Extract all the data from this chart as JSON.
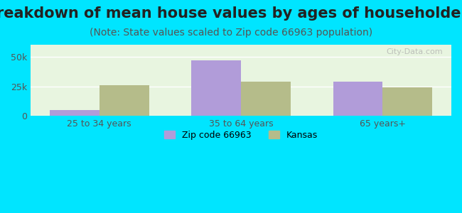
{
  "title": "Breakdown of mean house values by ages of householders",
  "subtitle": "(Note: State values scaled to Zip code 66963 population)",
  "categories": [
    "25 to 34 years",
    "35 to 64 years",
    "65 years+"
  ],
  "zip_values": [
    5000,
    47000,
    29000
  ],
  "kansas_values": [
    26000,
    29000,
    24000
  ],
  "zip_color": "#b19cd9",
  "kansas_color": "#b5bc8a",
  "background_outer": "#00e5ff",
  "background_inner": "#e8f5e0",
  "ylim": [
    0,
    60000
  ],
  "yticks": [
    0,
    25000,
    50000
  ],
  "ytick_labels": [
    "0",
    "25k",
    "50k"
  ],
  "legend_zip_label": "Zip code 66963",
  "legend_kansas_label": "Kansas",
  "title_fontsize": 15,
  "subtitle_fontsize": 10,
  "bar_width": 0.35
}
